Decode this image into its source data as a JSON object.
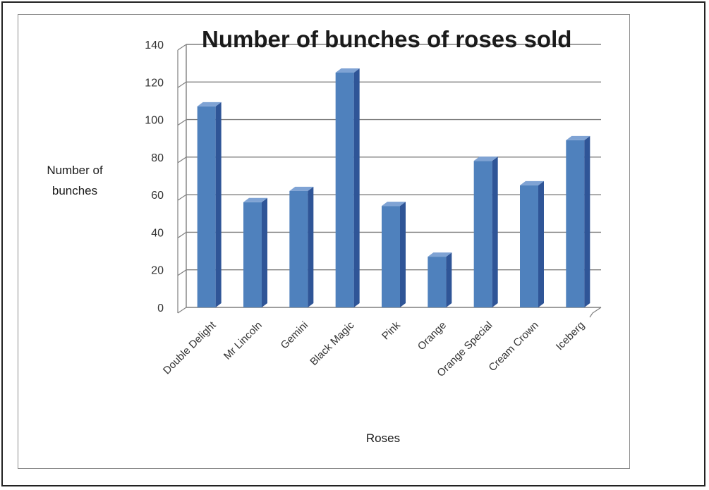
{
  "chart_data": {
    "type": "bar",
    "title": "Number of bunches of roses sold",
    "xlabel": "Roses",
    "ylabel": [
      "Number of",
      "bunches"
    ],
    "categories": [
      "Double Delight",
      "Mr Lincoln",
      "Gemini",
      "Black Magic",
      "Pink",
      "Orange",
      "Orange Special",
      "Cream Crown",
      "Iceberg"
    ],
    "values": [
      107,
      56,
      62,
      125,
      54,
      27,
      78,
      65,
      89
    ],
    "ylim": [
      0,
      140
    ],
    "yticks": [
      0,
      20,
      40,
      60,
      80,
      100,
      120,
      140
    ],
    "grid": true,
    "legend": "none",
    "colors": {
      "bar_front": "#4f81bd",
      "bar_side": "#2f5597",
      "bar_top": "#7fa3d4",
      "gridline": "#7f7f7f"
    }
  }
}
